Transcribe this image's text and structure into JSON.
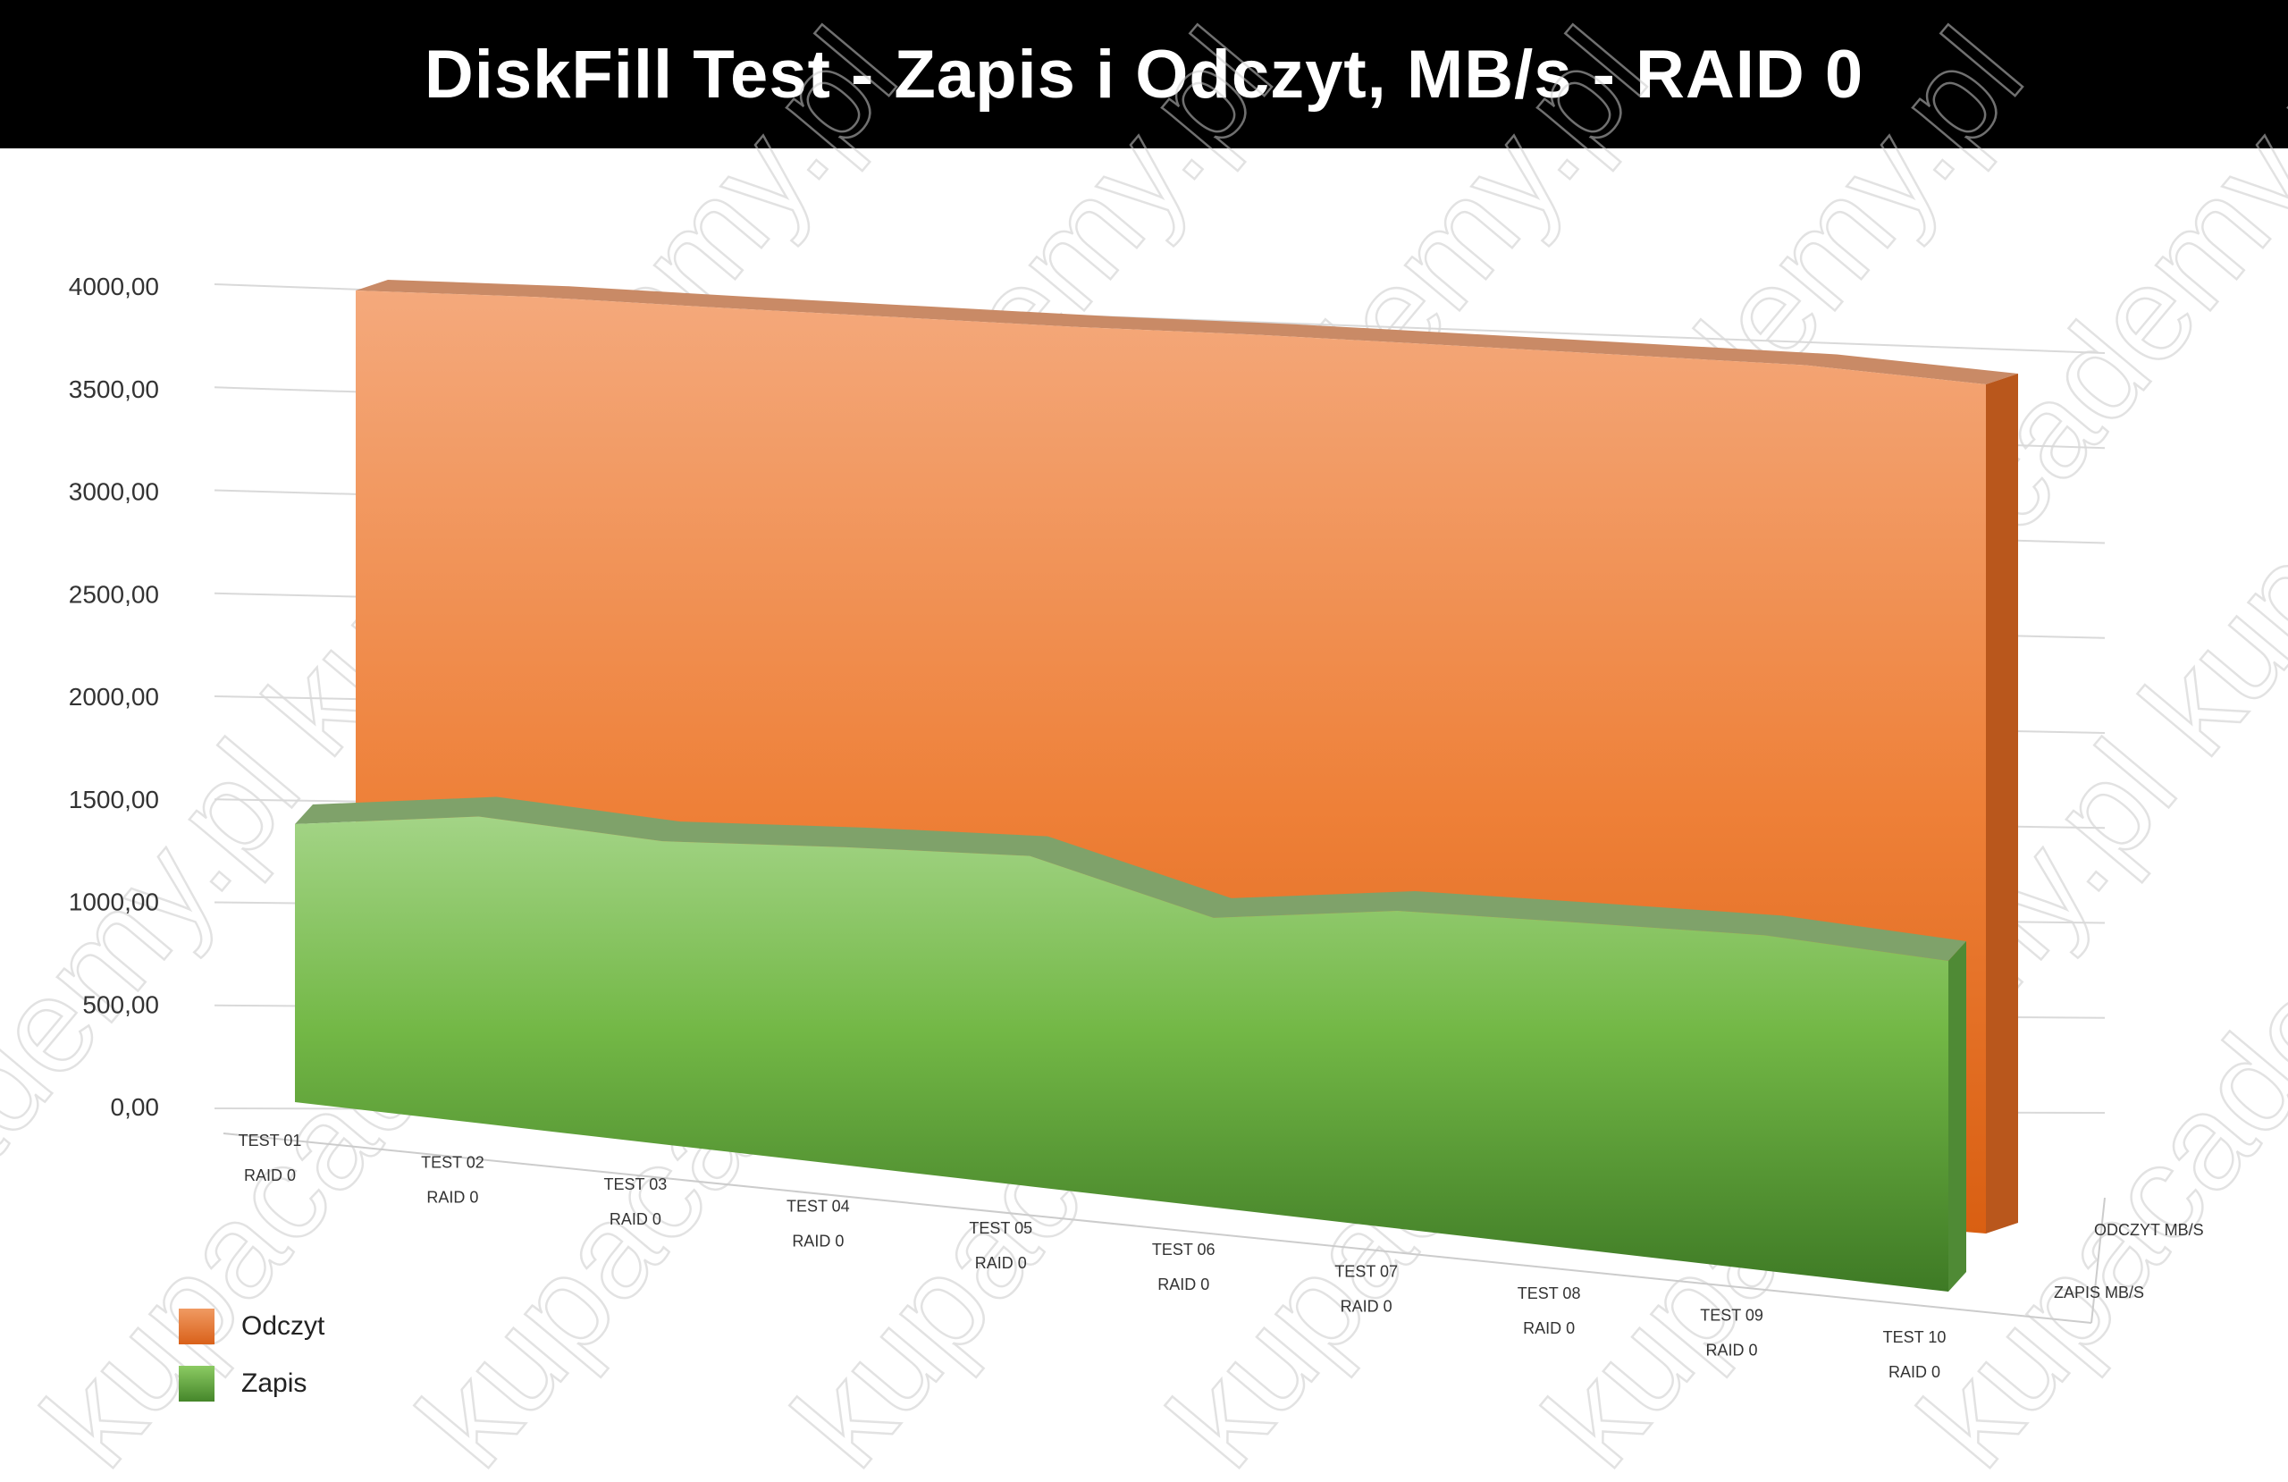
{
  "chart_data": {
    "type": "area",
    "title": "DiskFill Test - Zapis i Odczyt, MB/s - RAID 0",
    "categories": [
      [
        "TEST 01",
        "RAID 0"
      ],
      [
        "TEST 02",
        "RAID 0"
      ],
      [
        "TEST 03",
        "RAID 0"
      ],
      [
        "TEST 04",
        "RAID 0"
      ],
      [
        "TEST 05",
        "RAID 0"
      ],
      [
        "TEST 06",
        "RAID 0"
      ],
      [
        "TEST 07",
        "RAID 0"
      ],
      [
        "TEST 08",
        "RAID 0"
      ],
      [
        "TEST 09",
        "RAID 0"
      ],
      [
        "TEST 10",
        "RAID 0"
      ]
    ],
    "series": [
      {
        "name": "Odczyt",
        "depth_label": "ODCZYT MB/S",
        "color": "#ED7D31",
        "values": [
          3980,
          3975,
          3950,
          3930,
          3910,
          3900,
          3880,
          3860,
          3840,
          3780
        ]
      },
      {
        "name": "Zapis",
        "depth_label": "ZAPIS MB/S",
        "color": "#70AD47",
        "values": [
          1400,
          1450,
          1350,
          1340,
          1320,
          1100,
          1150,
          1130,
          1110,
          1050
        ]
      }
    ],
    "y_ticks": [
      "0,00",
      "500,00",
      "1000,00",
      "1500,00",
      "2000,00",
      "2500,00",
      "3000,00",
      "3500,00",
      "4000,00"
    ],
    "ylim": [
      0,
      4000
    ],
    "grid": true,
    "legend_position": "bottom-left",
    "watermark": "kupacademy.pl"
  }
}
